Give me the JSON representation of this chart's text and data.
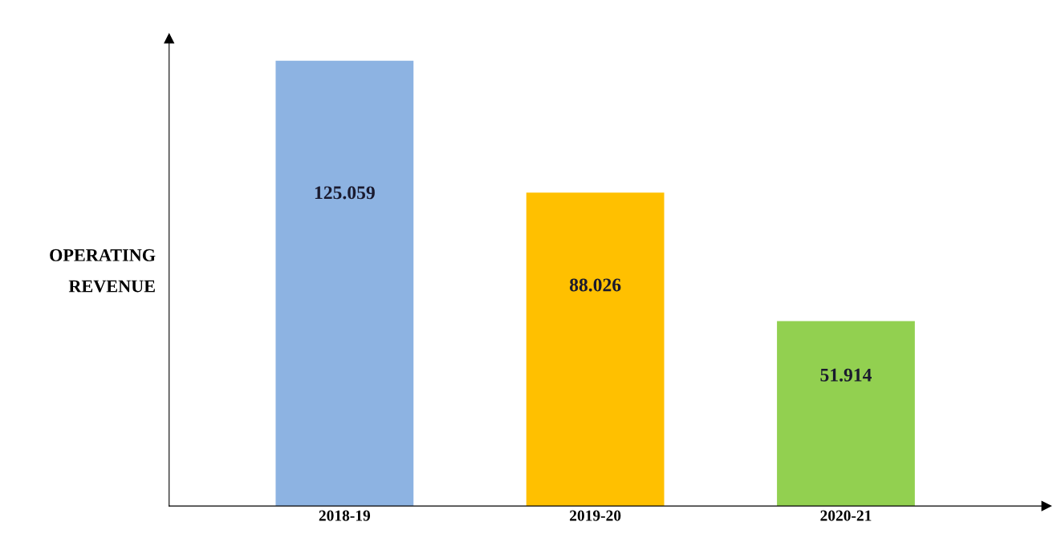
{
  "chart_data": {
    "type": "bar",
    "ylabel": "OPERATING\nREVENUE",
    "categories": [
      "2018-19",
      "2019-20",
      "2020-21"
    ],
    "values": [
      125.059,
      88.026,
      51.914
    ],
    "colors": [
      "#8db3e2",
      "#ffc000",
      "#92d050"
    ],
    "data_labels": true,
    "grid": false,
    "legend": false,
    "tick_labels": "x"
  }
}
